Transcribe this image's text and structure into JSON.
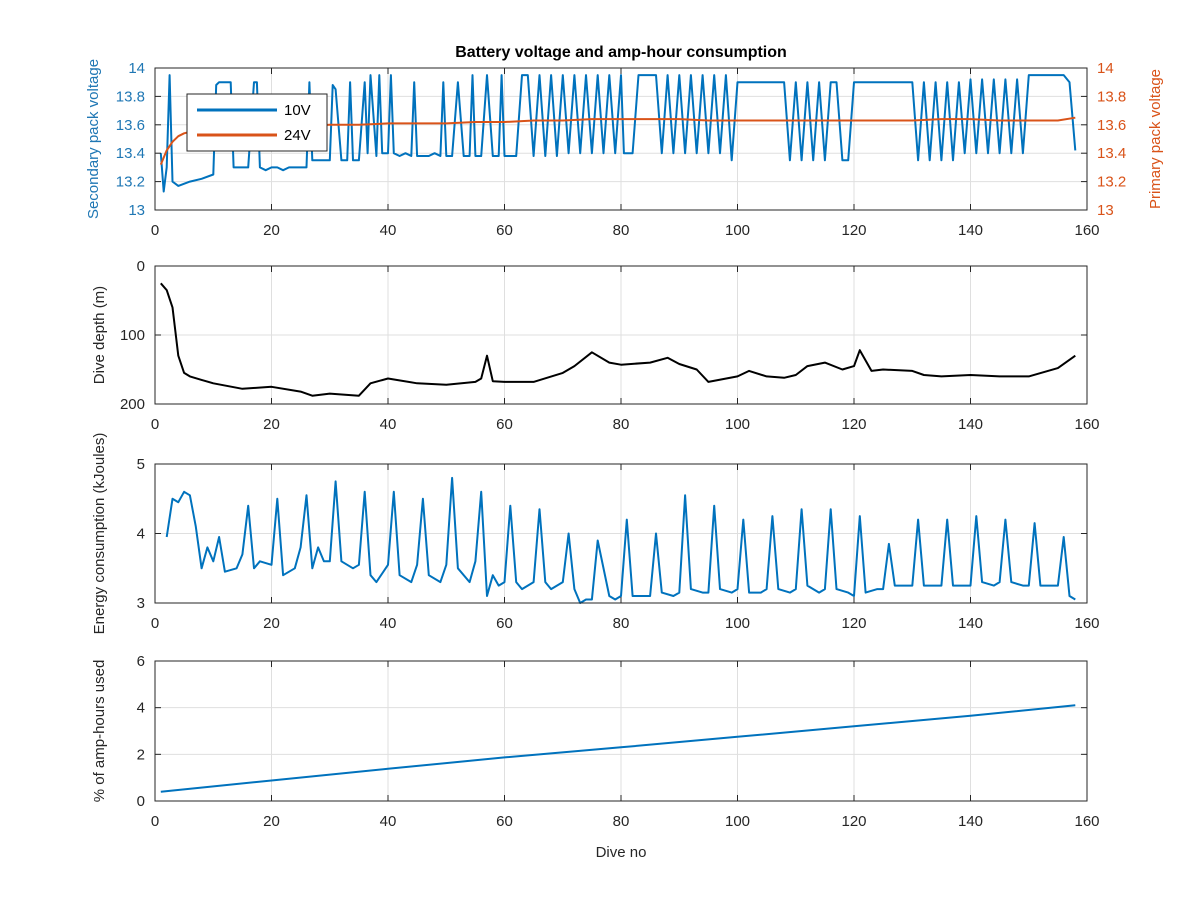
{
  "figure": {
    "title": "Battery voltage and amp-hour consumption",
    "xlabel": "Dive no"
  },
  "chart_data": [
    {
      "type": "line",
      "title": "Battery voltage and amp-hour consumption",
      "xlabel": "",
      "ylabel": "Secondary pack voltage",
      "ylabel_right": "Primary pack voltage",
      "xlim": [
        0,
        160
      ],
      "ylim": [
        13,
        14
      ],
      "ylim_right": [
        13,
        14
      ],
      "xticks": [
        0,
        20,
        40,
        60,
        80,
        100,
        120,
        140,
        160
      ],
      "yticks": [
        13,
        13.2,
        13.4,
        13.6,
        13.8,
        14
      ],
      "yticks_right": [
        13,
        13.2,
        13.4,
        13.6,
        13.8,
        14
      ],
      "grid": true,
      "legend": {
        "position": "top-left",
        "entries": [
          "10V",
          "24V"
        ]
      },
      "colors": {
        "left_axis": "#1f77b4",
        "right_axis": "#d95319",
        "series_10V": "#0072bd",
        "series_24V": "#d95319"
      },
      "series": [
        {
          "name": "10V",
          "axis": "left",
          "x": [
            1,
            1.5,
            2,
            2.5,
            3,
            4,
            6,
            8,
            10,
            10.5,
            11,
            12,
            13,
            13.5,
            14,
            15,
            16,
            17,
            17.5,
            18,
            19,
            20,
            21,
            22,
            23,
            24,
            25,
            26,
            26.5,
            27,
            28,
            29,
            30,
            30.5,
            31,
            32,
            33,
            33.5,
            34,
            35,
            36,
            36.5,
            37,
            38,
            38.5,
            39,
            40,
            40.5,
            41,
            42,
            43,
            44,
            44.5,
            45,
            46,
            47,
            48,
            49,
            49.5,
            50,
            51,
            52,
            53,
            54,
            54.5,
            55,
            56,
            57,
            58,
            59,
            59.5,
            60,
            61,
            62,
            63,
            64,
            65,
            66,
            67,
            68,
            69,
            70,
            71,
            72,
            73,
            74,
            75,
            76,
            77,
            78,
            79,
            80,
            80.5,
            81,
            82,
            83,
            84,
            85,
            86,
            87,
            88,
            89,
            90,
            91,
            92,
            93,
            94,
            95,
            96,
            97,
            98,
            99,
            100,
            101,
            102,
            103,
            104,
            105,
            106,
            107,
            108,
            109,
            110,
            111,
            112,
            113,
            114,
            115,
            116,
            117,
            118,
            119,
            120,
            121,
            122,
            123,
            124,
            125,
            126,
            127,
            128,
            129,
            130,
            131,
            132,
            133,
            134,
            135,
            136,
            137,
            138,
            139,
            140,
            141,
            142,
            143,
            144,
            145,
            146,
            147,
            148,
            149,
            150,
            151,
            152,
            153,
            154,
            155,
            156,
            157,
            158
          ],
          "values": [
            13.4,
            13.13,
            13.3,
            13.95,
            13.2,
            13.17,
            13.2,
            13.22,
            13.25,
            13.88,
            13.9,
            13.9,
            13.9,
            13.3,
            13.3,
            13.3,
            13.3,
            13.9,
            13.9,
            13.3,
            13.28,
            13.3,
            13.3,
            13.28,
            13.3,
            13.3,
            13.3,
            13.3,
            13.9,
            13.35,
            13.35,
            13.35,
            13.35,
            13.88,
            13.85,
            13.35,
            13.35,
            13.9,
            13.35,
            13.35,
            13.9,
            13.4,
            13.95,
            13.38,
            13.95,
            13.4,
            13.4,
            13.95,
            13.4,
            13.38,
            13.4,
            13.38,
            13.9,
            13.38,
            13.38,
            13.38,
            13.4,
            13.38,
            13.9,
            13.38,
            13.38,
            13.9,
            13.38,
            13.38,
            13.95,
            13.38,
            13.38,
            13.95,
            13.38,
            13.38,
            13.95,
            13.38,
            13.38,
            13.38,
            13.95,
            13.95,
            13.38,
            13.95,
            13.38,
            13.95,
            13.38,
            13.95,
            13.4,
            13.95,
            13.4,
            13.95,
            13.4,
            13.95,
            13.4,
            13.95,
            13.4,
            13.95,
            13.4,
            13.4,
            13.4,
            13.95,
            13.95,
            13.95,
            13.95,
            13.4,
            13.95,
            13.4,
            13.95,
            13.4,
            13.95,
            13.4,
            13.95,
            13.4,
            13.95,
            13.4,
            13.95,
            13.35,
            13.9,
            13.9,
            13.9,
            13.9,
            13.9,
            13.9,
            13.9,
            13.9,
            13.9,
            13.35,
            13.9,
            13.35,
            13.9,
            13.35,
            13.9,
            13.35,
            13.9,
            13.9,
            13.35,
            13.35,
            13.9,
            13.9,
            13.9,
            13.9,
            13.9,
            13.9,
            13.9,
            13.9,
            13.9,
            13.9,
            13.9,
            13.35,
            13.9,
            13.35,
            13.9,
            13.35,
            13.9,
            13.35,
            13.9,
            13.4,
            13.92,
            13.4,
            13.92,
            13.4,
            13.92,
            13.4,
            13.92,
            13.4,
            13.92,
            13.4,
            13.95,
            13.95,
            13.95,
            13.95,
            13.95,
            13.95,
            13.95,
            13.9,
            13.42
          ]
        },
        {
          "name": "24V",
          "axis": "right",
          "x": [
            1,
            2,
            3,
            4,
            5,
            6,
            8,
            10,
            12,
            15,
            20,
            25,
            30,
            35,
            40,
            45,
            50,
            55,
            60,
            65,
            70,
            75,
            80,
            85,
            90,
            95,
            100,
            105,
            110,
            115,
            120,
            125,
            130,
            135,
            140,
            145,
            150,
            155,
            158
          ],
          "values": [
            13.32,
            13.42,
            13.48,
            13.52,
            13.54,
            13.55,
            13.57,
            13.58,
            13.58,
            13.58,
            13.59,
            13.59,
            13.6,
            13.6,
            13.61,
            13.61,
            13.61,
            13.62,
            13.62,
            13.63,
            13.63,
            13.64,
            13.64,
            13.64,
            13.64,
            13.63,
            13.63,
            13.63,
            13.63,
            13.63,
            13.63,
            13.63,
            13.63,
            13.64,
            13.64,
            13.63,
            13.63,
            13.63,
            13.65
          ]
        }
      ]
    },
    {
      "type": "line",
      "xlabel": "",
      "ylabel": "Dive depth (m)",
      "xlim": [
        0,
        160
      ],
      "ylim": [
        0,
        200
      ],
      "y_reversed": true,
      "xticks": [
        0,
        20,
        40,
        60,
        80,
        100,
        120,
        140,
        160
      ],
      "yticks": [
        0,
        100,
        200
      ],
      "grid": true,
      "colors": {
        "series": "#000000"
      },
      "series": [
        {
          "name": "",
          "x": [
            1,
            2,
            3,
            4,
            5,
            6,
            8,
            10,
            15,
            20,
            25,
            27,
            30,
            35,
            37,
            40,
            45,
            50,
            55,
            56,
            57,
            58,
            60,
            65,
            70,
            72,
            75,
            78,
            80,
            85,
            88,
            90,
            93,
            95,
            100,
            102,
            105,
            108,
            110,
            112,
            115,
            118,
            120,
            121,
            123,
            125,
            130,
            132,
            135,
            140,
            145,
            150,
            155,
            158
          ],
          "values": [
            25,
            35,
            60,
            130,
            155,
            160,
            165,
            170,
            178,
            175,
            182,
            188,
            185,
            188,
            170,
            163,
            170,
            172,
            168,
            163,
            130,
            167,
            168,
            168,
            155,
            145,
            125,
            140,
            143,
            140,
            133,
            142,
            150,
            168,
            160,
            152,
            160,
            162,
            158,
            145,
            140,
            150,
            145,
            122,
            152,
            150,
            152,
            158,
            160,
            158,
            160,
            160,
            148,
            130
          ]
        }
      ]
    },
    {
      "type": "line",
      "xlabel": "",
      "ylabel": "Energy consumption (kJoules)",
      "xlim": [
        0,
        160
      ],
      "ylim": [
        3,
        5
      ],
      "xticks": [
        0,
        20,
        40,
        60,
        80,
        100,
        120,
        140,
        160
      ],
      "yticks": [
        3,
        4,
        5
      ],
      "grid": true,
      "colors": {
        "series": "#0072bd"
      },
      "series": [
        {
          "name": "",
          "x": [
            2,
            3,
            4,
            5,
            6,
            7,
            8,
            9,
            10,
            11,
            12,
            14,
            15,
            16,
            17,
            18,
            20,
            21,
            22,
            24,
            25,
            26,
            27,
            28,
            29,
            30,
            31,
            32,
            34,
            35,
            36,
            37,
            38,
            40,
            41,
            42,
            44,
            45,
            46,
            47,
            49,
            50,
            51,
            52,
            54,
            55,
            56,
            57,
            58,
            59,
            60,
            61,
            62,
            63,
            65,
            66,
            67,
            68,
            70,
            71,
            72,
            73,
            74,
            75,
            76,
            78,
            79,
            80,
            81,
            82,
            84,
            85,
            86,
            87,
            89,
            90,
            91,
            92,
            94,
            95,
            96,
            97,
            99,
            100,
            101,
            102,
            104,
            105,
            106,
            107,
            109,
            110,
            111,
            112,
            114,
            115,
            116,
            117,
            119,
            120,
            121,
            122,
            124,
            125,
            126,
            127,
            129,
            130,
            131,
            132,
            134,
            135,
            136,
            137,
            139,
            140,
            141,
            142,
            144,
            145,
            146,
            147,
            149,
            150,
            151,
            152,
            154,
            155,
            156,
            157,
            158
          ],
          "values": [
            3.95,
            4.5,
            4.45,
            4.6,
            4.55,
            4.1,
            3.5,
            3.8,
            3.6,
            3.95,
            3.45,
            3.5,
            3.7,
            4.4,
            3.5,
            3.6,
            3.55,
            4.5,
            3.4,
            3.5,
            3.8,
            4.55,
            3.5,
            3.8,
            3.6,
            3.6,
            4.75,
            3.6,
            3.5,
            3.55,
            4.6,
            3.4,
            3.3,
            3.55,
            4.6,
            3.4,
            3.3,
            3.55,
            4.5,
            3.4,
            3.3,
            3.55,
            4.8,
            3.5,
            3.3,
            3.6,
            4.6,
            3.1,
            3.4,
            3.25,
            3.3,
            4.4,
            3.3,
            3.2,
            3.3,
            4.35,
            3.3,
            3.2,
            3.3,
            4.0,
            3.2,
            3.0,
            3.05,
            3.05,
            3.9,
            3.1,
            3.05,
            3.1,
            4.2,
            3.1,
            3.1,
            3.1,
            4.0,
            3.15,
            3.1,
            3.15,
            4.55,
            3.2,
            3.15,
            3.15,
            4.4,
            3.2,
            3.15,
            3.2,
            4.2,
            3.15,
            3.15,
            3.2,
            4.25,
            3.2,
            3.15,
            3.2,
            4.35,
            3.25,
            3.15,
            3.2,
            4.35,
            3.2,
            3.15,
            3.1,
            4.25,
            3.15,
            3.2,
            3.2,
            3.85,
            3.25,
            3.25,
            3.25,
            4.2,
            3.25,
            3.25,
            3.25,
            4.2,
            3.25,
            3.25,
            3.25,
            4.25,
            3.3,
            3.25,
            3.3,
            4.2,
            3.3,
            3.25,
            3.25,
            4.15,
            3.25,
            3.25,
            3.25,
            3.95,
            3.1,
            3.05
          ]
        }
      ]
    },
    {
      "type": "line",
      "xlabel": "Dive no",
      "ylabel": "% of amp-hours used",
      "xlim": [
        0,
        160
      ],
      "ylim": [
        0,
        6
      ],
      "xticks": [
        0,
        20,
        40,
        60,
        80,
        100,
        120,
        140,
        160
      ],
      "yticks": [
        0,
        2,
        4,
        6
      ],
      "grid": true,
      "colors": {
        "series": "#0072bd"
      },
      "series": [
        {
          "name": "",
          "x": [
            1,
            20,
            40,
            60,
            80,
            100,
            120,
            140,
            158
          ],
          "values": [
            0.4,
            0.88,
            1.38,
            1.87,
            2.3,
            2.75,
            3.2,
            3.65,
            4.1
          ]
        }
      ]
    }
  ]
}
